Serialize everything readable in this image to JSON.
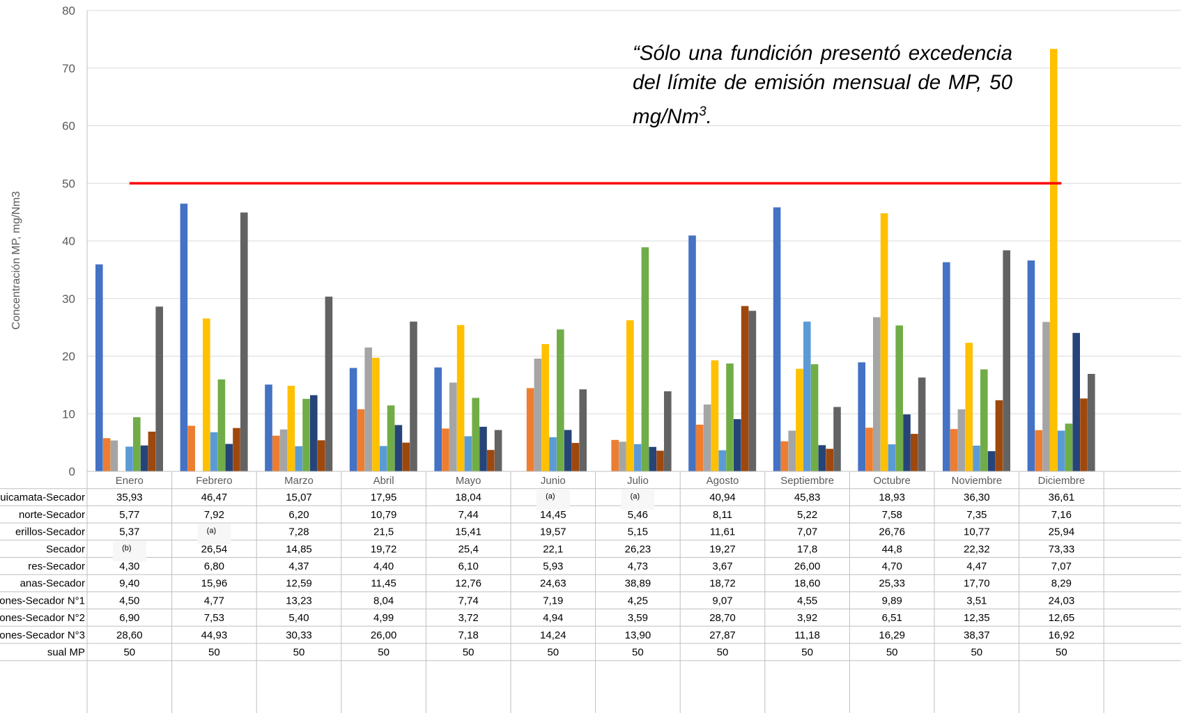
{
  "chart_data": {
    "type": "bar",
    "ylabel": "Concentración MP, mg/Nm3",
    "ylim": [
      0,
      80
    ],
    "yticks": [
      0,
      10,
      20,
      30,
      40,
      50,
      60,
      70,
      80
    ],
    "grid": true,
    "categories": [
      "Enero",
      "Febrero",
      "Marzo",
      "Abril",
      "Mayo",
      "Junio",
      "Julio",
      "Agosto",
      "Septiembre",
      "Octubre",
      "Noviembre",
      "Diciembre"
    ],
    "series": [
      {
        "name": "uicamata-Secador",
        "color": "#4472C4",
        "values": [
          35.93,
          46.47,
          15.07,
          17.95,
          18.04,
          null,
          null,
          40.94,
          45.83,
          18.93,
          36.3,
          36.61
        ],
        "labels": [
          "35,93",
          "46,47",
          "15,07",
          "17,95",
          "18,04",
          "(a)",
          "(a)",
          "40,94",
          "45,83",
          "18,93",
          "36,30",
          "36,61"
        ]
      },
      {
        "name": "norte-Secador",
        "color": "#ED7D31",
        "values": [
          5.77,
          7.92,
          6.2,
          10.79,
          7.44,
          14.45,
          5.46,
          8.11,
          5.22,
          7.58,
          7.35,
          7.16
        ],
        "labels": [
          "5,77",
          "7,92",
          "6,20",
          "10,79",
          "7,44",
          "14,45",
          "5,46",
          "8,11",
          "5,22",
          "7,58",
          "7,35",
          "7,16"
        ]
      },
      {
        "name": "erillos-Secador",
        "color": "#A5A5A5",
        "values": [
          5.37,
          null,
          7.28,
          21.5,
          15.41,
          19.57,
          5.15,
          11.61,
          7.07,
          26.76,
          10.77,
          25.94
        ],
        "labels": [
          "5,37",
          "(a)",
          "7,28",
          "21,5",
          "15,41",
          "19,57",
          "5,15",
          "11,61",
          "7,07",
          "26,76",
          "10,77",
          "25,94"
        ]
      },
      {
        "name": "Secador",
        "color": "#FFC000",
        "values": [
          null,
          26.54,
          14.85,
          19.72,
          25.4,
          22.1,
          26.23,
          19.27,
          17.8,
          44.8,
          22.32,
          73.33
        ],
        "labels": [
          "(b)",
          "26,54",
          "14,85",
          "19,72",
          "25,4",
          "22,1",
          "26,23",
          "19,27",
          "17,8",
          "44,8",
          "22,32",
          "73,33"
        ]
      },
      {
        "name": "res-Secador",
        "color": "#5B9BD5",
        "values": [
          4.3,
          6.8,
          4.37,
          4.4,
          6.1,
          5.93,
          4.73,
          3.67,
          26.0,
          4.7,
          4.47,
          7.07
        ],
        "labels": [
          "4,30",
          "6,80",
          "4,37",
          "4,40",
          "6,10",
          "5,93",
          "4,73",
          "3,67",
          "26,00",
          "4,70",
          "4,47",
          "7,07"
        ]
      },
      {
        "name": "anas-Secador",
        "color": "#70AD47",
        "values": [
          9.4,
          15.96,
          12.59,
          11.45,
          12.76,
          24.63,
          38.89,
          18.72,
          18.6,
          25.33,
          17.7,
          8.29
        ],
        "labels": [
          "9,40",
          "15,96",
          "12,59",
          "11,45",
          "12,76",
          "24,63",
          "38,89",
          "18,72",
          "18,60",
          "25,33",
          "17,70",
          "8,29"
        ]
      },
      {
        "name": "ones-Secador N°1",
        "color": "#264478",
        "values": [
          4.5,
          4.77,
          13.23,
          8.04,
          7.74,
          7.19,
          4.25,
          9.07,
          4.55,
          9.89,
          3.51,
          24.03
        ],
        "labels": [
          "4,50",
          "4,77",
          "13,23",
          "8,04",
          "7,74",
          "7,19",
          "4,25",
          "9,07",
          "4,55",
          "9,89",
          "3,51",
          "24,03"
        ]
      },
      {
        "name": "ones-Secador N°2",
        "color": "#9E480E",
        "values": [
          6.9,
          7.53,
          5.4,
          4.99,
          3.72,
          4.94,
          3.59,
          28.7,
          3.92,
          6.51,
          12.35,
          12.65
        ],
        "labels": [
          "6,90",
          "7,53",
          "5,40",
          "4,99",
          "3,72",
          "4,94",
          "3,59",
          "28,70",
          "3,92",
          "6,51",
          "12,35",
          "12,65"
        ]
      },
      {
        "name": "ones-Secador N°3",
        "color": "#636363",
        "values": [
          28.6,
          44.93,
          30.33,
          26.0,
          7.18,
          14.24,
          13.9,
          27.87,
          11.18,
          16.29,
          38.37,
          16.92
        ],
        "labels": [
          "28,60",
          "44,93",
          "30,33",
          "26,00",
          "7,18",
          "14,24",
          "13,90",
          "27,87",
          "11,18",
          "16,29",
          "38,37",
          "16,92"
        ]
      }
    ],
    "limit": {
      "name": "sual MP",
      "color": "#FF0000",
      "values": [
        50,
        50,
        50,
        50,
        50,
        50,
        50,
        50,
        50,
        50,
        50,
        50
      ],
      "labels": [
        "50",
        "50",
        "50",
        "50",
        "50",
        "50",
        "50",
        "50",
        "50",
        "50",
        "50",
        "50"
      ]
    }
  },
  "annotation": {
    "line1": "“Sólo una fundición presentó excedencia del límite de emisión mensual de MP, 50 mg/Nm",
    "sup": "3",
    "end": "."
  }
}
